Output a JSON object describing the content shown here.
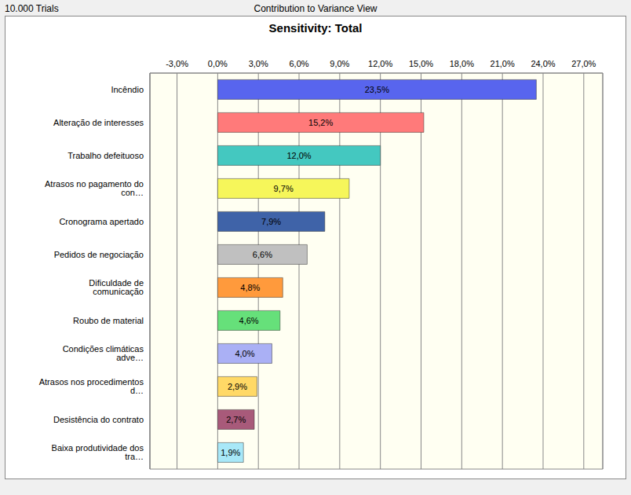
{
  "chart_data": {
    "type": "bar",
    "orientation": "horizontal",
    "title": "Sensitivity: Total",
    "subtitle": "Contribution to Variance View",
    "annotations": [
      "10.000 Trials"
    ],
    "categories": [
      "Incêndio",
      "Alteração de interesses",
      "Trabalho defeituoso",
      "Atrasos no pagamento do con…",
      "Cronograma apertado",
      "Pedidos de negociação",
      "Dificuldade de comunicação",
      "Roubo de material",
      "Condições climáticas adve…",
      "Atrasos nos procedimentos d…",
      "Desistência do contrato",
      "Baixa produtividade dos tra…"
    ],
    "values": [
      23.5,
      15.2,
      12.0,
      9.7,
      7.9,
      6.6,
      4.8,
      4.6,
      4.0,
      2.9,
      2.7,
      1.9
    ],
    "value_labels": [
      "23,5%",
      "15,2%",
      "12,0%",
      "9,7%",
      "7,9%",
      "6,6%",
      "4,8%",
      "4,6%",
      "4,0%",
      "2,9%",
      "2,7%",
      "1,9%"
    ],
    "data_labels": true,
    "colors": [
      "#5865ee",
      "#ff7a7a",
      "#44c8c0",
      "#f6f65a",
      "#3f63a8",
      "#c0c0c0",
      "#ff9a3c",
      "#66e07a",
      "#aab0f5",
      "#ffd966",
      "#a85a7a",
      "#a8e8f8"
    ],
    "xlim": [
      -5,
      28.4
    ],
    "xticks": [
      {
        "value": -3,
        "label": "-3,0%"
      },
      {
        "value": 0,
        "label": "0,0%"
      },
      {
        "value": 3,
        "label": "3,0%"
      },
      {
        "value": 6,
        "label": "6,0%"
      },
      {
        "value": 9,
        "label": "9,0%"
      },
      {
        "value": 12,
        "label": "12,0%"
      },
      {
        "value": 15,
        "label": "15,0%"
      },
      {
        "value": 18,
        "label": "18,0%"
      },
      {
        "value": 21,
        "label": "21,0%"
      },
      {
        "value": 24,
        "label": "24,0%"
      },
      {
        "value": 27,
        "label": "27,0%"
      }
    ],
    "grid": true
  }
}
